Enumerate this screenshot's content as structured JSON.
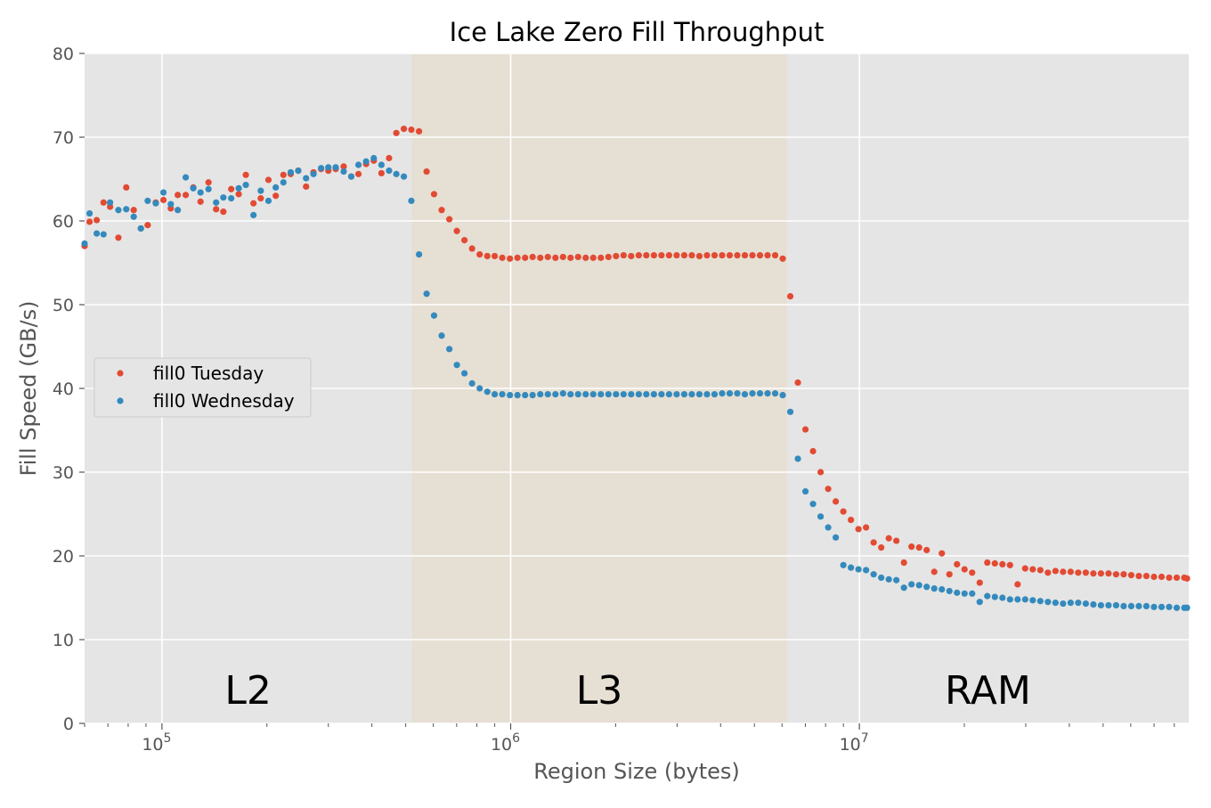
{
  "chart_data": {
    "type": "scatter",
    "title": "Ice Lake Zero Fill Throughput",
    "xlabel": "Region Size (bytes)",
    "ylabel": "Fill Speed (GB/s)",
    "xscale": "log",
    "xlim": [
      60000,
      88000000
    ],
    "ylim": [
      0,
      80
    ],
    "yticks": [
      "0",
      "10",
      "20",
      "30",
      "40",
      "50",
      "60",
      "70",
      "80"
    ],
    "xticks": [
      {
        "base": "10",
        "exp": "5"
      },
      {
        "base": "10",
        "exp": "6"
      },
      {
        "base": "10",
        "exp": "7"
      }
    ],
    "grid": true,
    "legend_position": "center-left",
    "regions": [
      {
        "label": "L2",
        "from": 60000,
        "to": 520000,
        "shaded": false
      },
      {
        "label": "L3",
        "from": 520000,
        "to": 6200000,
        "shaded": true
      },
      {
        "label": "RAM",
        "from": 6200000,
        "to": 88000000,
        "shaded": false
      }
    ],
    "series": [
      {
        "name": "fill0 Tuesday",
        "color": "#e24a33",
        "points": [
          [
            60000,
            57.0
          ],
          [
            62000,
            59.9
          ],
          [
            65000,
            60.1
          ],
          [
            68000,
            62.2
          ],
          [
            71000,
            61.7
          ],
          [
            75000,
            58.0
          ],
          [
            79000,
            64.0
          ],
          [
            83000,
            61.3
          ],
          [
            87000,
            59.1
          ],
          [
            91000,
            59.5
          ],
          [
            96000,
            62.2
          ],
          [
            101000,
            62.5
          ],
          [
            106000,
            61.5
          ],
          [
            111000,
            63.1
          ],
          [
            117000,
            63.1
          ],
          [
            123000,
            64.0
          ],
          [
            129000,
            62.3
          ],
          [
            136000,
            64.6
          ],
          [
            143000,
            61.4
          ],
          [
            150000,
            61.1
          ],
          [
            158000,
            63.8
          ],
          [
            166000,
            63.2
          ],
          [
            174000,
            65.5
          ],
          [
            183000,
            62.1
          ],
          [
            192000,
            62.7
          ],
          [
            202000,
            64.9
          ],
          [
            212000,
            63.0
          ],
          [
            223000,
            65.5
          ],
          [
            234000,
            65.6
          ],
          [
            246000,
            66.0
          ],
          [
            259000,
            64.1
          ],
          [
            272000,
            65.8
          ],
          [
            286000,
            66.2
          ],
          [
            300000,
            66.0
          ],
          [
            315000,
            66.2
          ],
          [
            332000,
            66.5
          ],
          [
            349000,
            65.3
          ],
          [
            366000,
            65.6
          ],
          [
            385000,
            66.8
          ],
          [
            405000,
            67.2
          ],
          [
            426000,
            65.7
          ],
          [
            448000,
            67.5
          ],
          [
            470000,
            70.5
          ],
          [
            494000,
            71.0
          ],
          [
            519000,
            70.9
          ],
          [
            546000,
            70.7
          ],
          [
            574000,
            65.9
          ],
          [
            603000,
            63.2
          ],
          [
            634000,
            61.3
          ],
          [
            667000,
            60.2
          ],
          [
            701000,
            58.8
          ],
          [
            737000,
            57.7
          ],
          [
            775000,
            56.7
          ],
          [
            815000,
            56.0
          ],
          [
            857000,
            55.8
          ],
          [
            900000,
            55.8
          ],
          [
            946000,
            55.6
          ],
          [
            995000,
            55.5
          ],
          [
            1046000,
            55.6
          ],
          [
            1100000,
            55.6
          ],
          [
            1156000,
            55.7
          ],
          [
            1216000,
            55.6
          ],
          [
            1278000,
            55.7
          ],
          [
            1344000,
            55.6
          ],
          [
            1413000,
            55.7
          ],
          [
            1485000,
            55.6
          ],
          [
            1561000,
            55.7
          ],
          [
            1641000,
            55.6
          ],
          [
            1725000,
            55.6
          ],
          [
            1814000,
            55.6
          ],
          [
            1907000,
            55.7
          ],
          [
            2005000,
            55.8
          ],
          [
            2108000,
            55.9
          ],
          [
            2216000,
            55.8
          ],
          [
            2330000,
            55.9
          ],
          [
            2449000,
            55.9
          ],
          [
            2575000,
            55.9
          ],
          [
            2707000,
            55.9
          ],
          [
            2846000,
            55.9
          ],
          [
            2992000,
            55.9
          ],
          [
            3146000,
            55.9
          ],
          [
            3307000,
            55.9
          ],
          [
            3477000,
            55.8
          ],
          [
            3655000,
            55.9
          ],
          [
            3843000,
            55.9
          ],
          [
            4040000,
            55.9
          ],
          [
            4247000,
            55.9
          ],
          [
            4465000,
            55.9
          ],
          [
            4694000,
            55.9
          ],
          [
            4935000,
            55.9
          ],
          [
            5188000,
            55.9
          ],
          [
            5454000,
            55.9
          ],
          [
            5734000,
            55.9
          ],
          [
            6028000,
            55.5
          ],
          [
            6337000,
            51.0
          ],
          [
            6662000,
            40.7
          ],
          [
            7004000,
            35.1
          ],
          [
            7363000,
            32.5
          ],
          [
            7741000,
            30.0
          ],
          [
            8138000,
            28.0
          ],
          [
            8556000,
            26.5
          ],
          [
            8995000,
            25.3
          ],
          [
            9456000,
            24.3
          ],
          [
            9941000,
            23.2
          ],
          [
            10451000,
            23.4
          ],
          [
            10987000,
            21.6
          ],
          [
            11551000,
            21.0
          ],
          [
            12143000,
            22.1
          ],
          [
            12766000,
            21.8
          ],
          [
            13421000,
            19.2
          ],
          [
            14110000,
            21.1
          ],
          [
            14834000,
            21.0
          ],
          [
            15595000,
            20.7
          ],
          [
            16395000,
            18.1
          ],
          [
            17236000,
            20.3
          ],
          [
            18120000,
            17.8
          ],
          [
            19050000,
            19.0
          ],
          [
            20027000,
            18.4
          ],
          [
            21055000,
            18.0
          ],
          [
            22135000,
            16.8
          ],
          [
            23270000,
            19.2
          ],
          [
            24464000,
            19.1
          ],
          [
            25719000,
            19.0
          ],
          [
            27038000,
            18.9
          ],
          [
            28426000,
            16.6
          ],
          [
            29884000,
            18.5
          ],
          [
            31417000,
            18.4
          ],
          [
            33029000,
            18.3
          ],
          [
            34724000,
            18.0
          ],
          [
            36505000,
            18.2
          ],
          [
            38378000,
            18.1
          ],
          [
            40347000,
            18.1
          ],
          [
            42417000,
            18.0
          ],
          [
            44593000,
            18.0
          ],
          [
            46881000,
            17.9
          ],
          [
            49286000,
            17.9
          ],
          [
            51815000,
            17.9
          ],
          [
            54474000,
            17.8
          ],
          [
            57268000,
            17.8
          ],
          [
            60206000,
            17.7
          ],
          [
            63295000,
            17.6
          ],
          [
            66543000,
            17.6
          ],
          [
            69957000,
            17.5
          ],
          [
            73546000,
            17.5
          ],
          [
            77320000,
            17.4
          ],
          [
            81287000,
            17.4
          ],
          [
            85458000,
            17.4
          ],
          [
            87000000,
            17.3
          ]
        ]
      },
      {
        "name": "fill0 Wednesday",
        "color": "#348abd",
        "points": [
          [
            60000,
            57.3
          ],
          [
            62000,
            60.9
          ],
          [
            65000,
            58.5
          ],
          [
            68000,
            58.4
          ],
          [
            71000,
            62.2
          ],
          [
            75000,
            61.3
          ],
          [
            79000,
            61.4
          ],
          [
            83000,
            60.5
          ],
          [
            87000,
            59.1
          ],
          [
            91000,
            62.4
          ],
          [
            96000,
            62.1
          ],
          [
            101000,
            63.4
          ],
          [
            106000,
            62.0
          ],
          [
            111000,
            61.3
          ],
          [
            117000,
            65.2
          ],
          [
            123000,
            63.9
          ],
          [
            129000,
            63.4
          ],
          [
            136000,
            63.8
          ],
          [
            143000,
            62.2
          ],
          [
            150000,
            62.8
          ],
          [
            158000,
            62.7
          ],
          [
            166000,
            63.9
          ],
          [
            174000,
            64.3
          ],
          [
            183000,
            60.7
          ],
          [
            192000,
            63.6
          ],
          [
            202000,
            62.4
          ],
          [
            212000,
            64.0
          ],
          [
            223000,
            64.6
          ],
          [
            234000,
            65.8
          ],
          [
            246000,
            66.0
          ],
          [
            259000,
            65.1
          ],
          [
            272000,
            65.6
          ],
          [
            286000,
            66.3
          ],
          [
            300000,
            66.4
          ],
          [
            315000,
            66.4
          ],
          [
            332000,
            65.9
          ],
          [
            349000,
            65.3
          ],
          [
            366000,
            66.7
          ],
          [
            385000,
            67.1
          ],
          [
            405000,
            67.5
          ],
          [
            426000,
            66.7
          ],
          [
            448000,
            66.0
          ],
          [
            470000,
            65.6
          ],
          [
            494000,
            65.3
          ],
          [
            519000,
            62.4
          ],
          [
            546000,
            56.0
          ],
          [
            574000,
            51.3
          ],
          [
            603000,
            48.7
          ],
          [
            634000,
            46.3
          ],
          [
            667000,
            44.7
          ],
          [
            701000,
            42.8
          ],
          [
            737000,
            41.8
          ],
          [
            775000,
            40.6
          ],
          [
            815000,
            40.0
          ],
          [
            857000,
            39.6
          ],
          [
            900000,
            39.3
          ],
          [
            946000,
            39.3
          ],
          [
            995000,
            39.2
          ],
          [
            1046000,
            39.2
          ],
          [
            1100000,
            39.2
          ],
          [
            1156000,
            39.2
          ],
          [
            1216000,
            39.3
          ],
          [
            1278000,
            39.3
          ],
          [
            1344000,
            39.3
          ],
          [
            1413000,
            39.4
          ],
          [
            1485000,
            39.3
          ],
          [
            1561000,
            39.3
          ],
          [
            1641000,
            39.3
          ],
          [
            1725000,
            39.3
          ],
          [
            1814000,
            39.3
          ],
          [
            1907000,
            39.3
          ],
          [
            2005000,
            39.3
          ],
          [
            2108000,
            39.3
          ],
          [
            2216000,
            39.3
          ],
          [
            2330000,
            39.3
          ],
          [
            2449000,
            39.3
          ],
          [
            2575000,
            39.3
          ],
          [
            2707000,
            39.3
          ],
          [
            2846000,
            39.3
          ],
          [
            2992000,
            39.3
          ],
          [
            3146000,
            39.3
          ],
          [
            3307000,
            39.3
          ],
          [
            3477000,
            39.3
          ],
          [
            3655000,
            39.3
          ],
          [
            3843000,
            39.3
          ],
          [
            4040000,
            39.4
          ],
          [
            4247000,
            39.4
          ],
          [
            4465000,
            39.4
          ],
          [
            4694000,
            39.3
          ],
          [
            4935000,
            39.4
          ],
          [
            5188000,
            39.4
          ],
          [
            5454000,
            39.4
          ],
          [
            5734000,
            39.4
          ],
          [
            6028000,
            39.2
          ],
          [
            6337000,
            37.2
          ],
          [
            6662000,
            31.6
          ],
          [
            7004000,
            27.7
          ],
          [
            7363000,
            26.2
          ],
          [
            7741000,
            24.7
          ],
          [
            8138000,
            23.4
          ],
          [
            8556000,
            22.2
          ],
          [
            8995000,
            18.9
          ],
          [
            9456000,
            18.6
          ],
          [
            9941000,
            18.4
          ],
          [
            10451000,
            18.3
          ],
          [
            10987000,
            17.8
          ],
          [
            11551000,
            17.4
          ],
          [
            12143000,
            17.2
          ],
          [
            12766000,
            17.1
          ],
          [
            13421000,
            16.2
          ],
          [
            14110000,
            16.6
          ],
          [
            14834000,
            16.5
          ],
          [
            15595000,
            16.3
          ],
          [
            16395000,
            16.1
          ],
          [
            17236000,
            16.0
          ],
          [
            18120000,
            15.8
          ],
          [
            19050000,
            15.6
          ],
          [
            20027000,
            15.5
          ],
          [
            21055000,
            15.5
          ],
          [
            22135000,
            14.5
          ],
          [
            23270000,
            15.2
          ],
          [
            24464000,
            15.1
          ],
          [
            25719000,
            15.0
          ],
          [
            27038000,
            14.8
          ],
          [
            28426000,
            14.8
          ],
          [
            29884000,
            14.8
          ],
          [
            31417000,
            14.7
          ],
          [
            33029000,
            14.6
          ],
          [
            34724000,
            14.5
          ],
          [
            36505000,
            14.4
          ],
          [
            38378000,
            14.3
          ],
          [
            40347000,
            14.4
          ],
          [
            42417000,
            14.4
          ],
          [
            44593000,
            14.3
          ],
          [
            46881000,
            14.2
          ],
          [
            49286000,
            14.1
          ],
          [
            51815000,
            14.1
          ],
          [
            54474000,
            14.1
          ],
          [
            57268000,
            14.0
          ],
          [
            60206000,
            14.0
          ],
          [
            63295000,
            14.0
          ],
          [
            66543000,
            14.0
          ],
          [
            69957000,
            13.9
          ],
          [
            73546000,
            13.9
          ],
          [
            77320000,
            13.9
          ],
          [
            81287000,
            13.8
          ],
          [
            85458000,
            13.8
          ],
          [
            87000000,
            13.8
          ]
        ]
      }
    ]
  }
}
